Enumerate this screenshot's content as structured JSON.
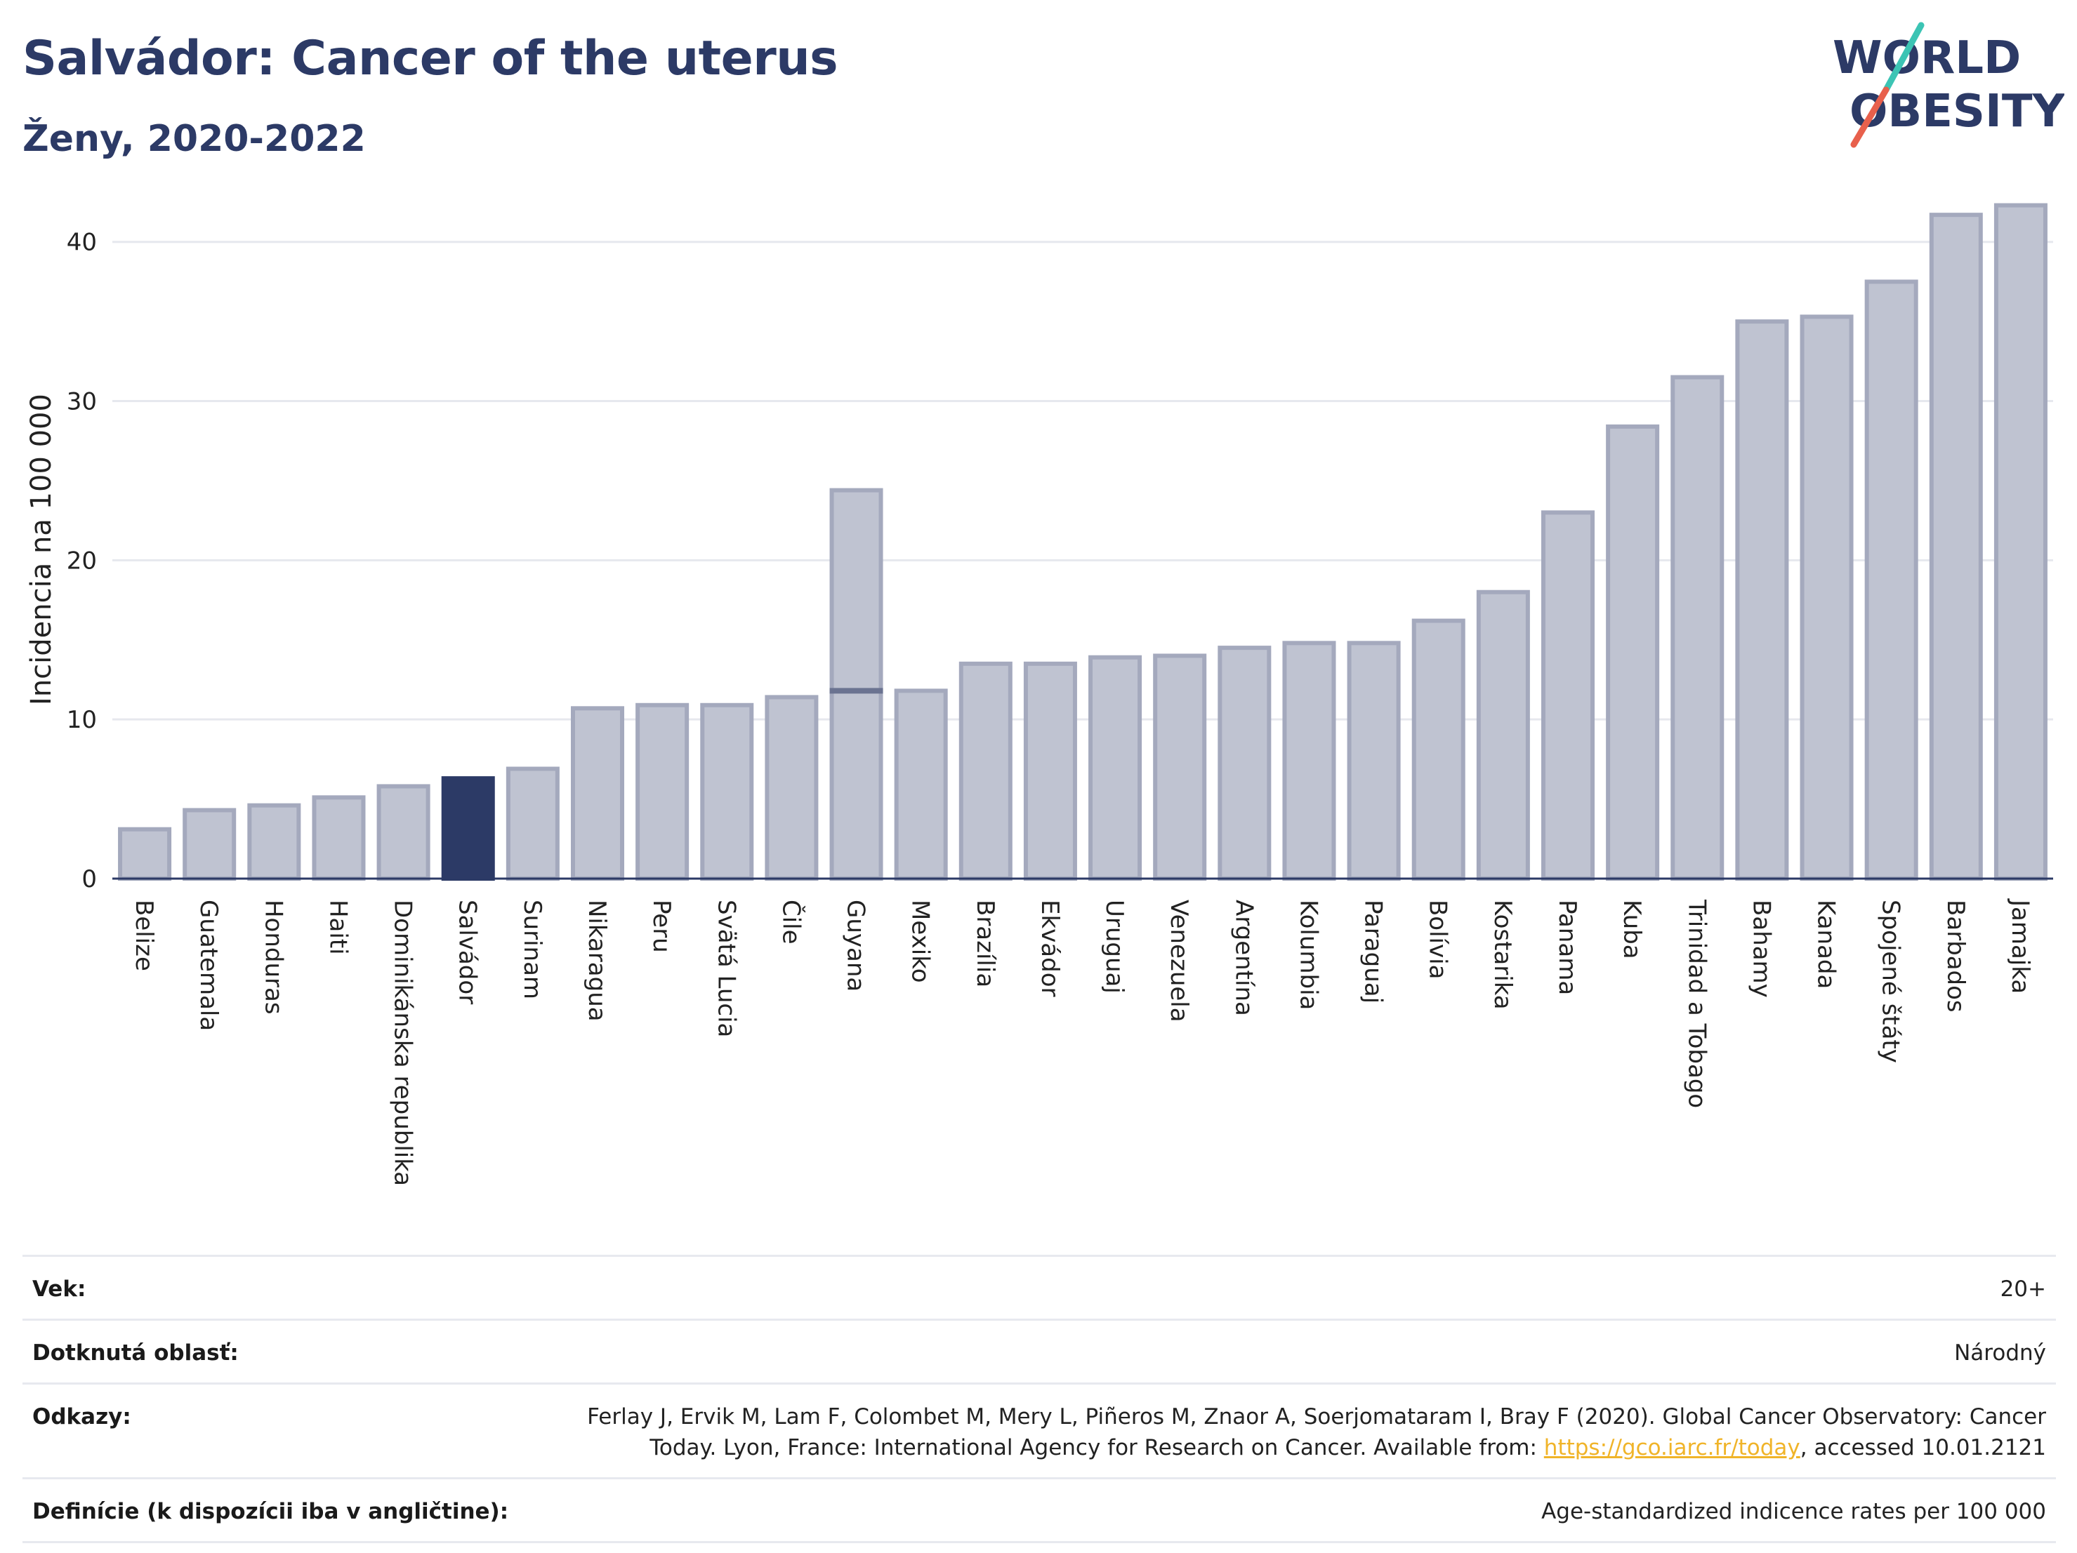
{
  "header": {
    "title": "Salvádor: Cancer of the uterus",
    "subtitle": "Ženy, 2020-2022"
  },
  "logo": {
    "line1": "WORLD",
    "line2": "OBESITY",
    "colors": {
      "text": "#2c3a66",
      "slash_top": "#3cc4b4",
      "slash_bottom": "#e8604c"
    }
  },
  "colors": {
    "bar_fill": "#bfc3d1",
    "bar_stroke": "#a4a9bd",
    "highlight_fill": "#2c3a66",
    "grid": "#e6e8ee",
    "axis": "#2c3a66"
  },
  "chart_data": {
    "type": "bar",
    "title": "Salvádor: Cancer of the uterus",
    "subtitle": "Ženy, 2020-2022",
    "xlabel": "",
    "ylabel": "Incidencia na 100 000",
    "ylim": [
      0,
      44
    ],
    "yticks": [
      0,
      10,
      20,
      30,
      40
    ],
    "grid": true,
    "highlight": "Salvádor",
    "categories": [
      "Belize",
      "Guatemala",
      "Honduras",
      "Haiti",
      "Dominikánska republika",
      "Salvádor",
      "Surinam",
      "Nikaragua",
      "Peru",
      "Svätá Lucia",
      "Čile",
      "Guyana",
      "Mexiko",
      "Brazília",
      "Ekvádor",
      "Uruguaj",
      "Venezuela",
      "Argentína",
      "Kolumbia",
      "Paraguaj",
      "Bolívia",
      "Kostarika",
      "Panama",
      "Kuba",
      "Trinidad a Tobago",
      "Bahamy",
      "Kanada",
      "Spojené štáty",
      "Barbados",
      "Jamajka"
    ],
    "values": [
      3.1,
      4.3,
      4.6,
      5.1,
      5.8,
      6.3,
      6.9,
      10.7,
      10.9,
      10.9,
      11.4,
      24.4,
      11.8,
      13.5,
      13.5,
      13.9,
      14.0,
      14.5,
      14.8,
      14.8,
      16.2,
      18.0,
      23.0,
      28.4,
      31.5,
      35.0,
      35.3,
      37.5,
      41.7,
      42.3
    ],
    "range_markers": [
      {
        "category": "Guyana",
        "value": 11.8
      }
    ]
  },
  "info": {
    "rows": [
      {
        "label": "Vek:",
        "value": "20+"
      },
      {
        "label": "Dotknutá oblasť:",
        "value": "Národný"
      },
      {
        "label": "Odkazy:",
        "value_pre": "Ferlay J, Ervik M, Lam F, Colombet M, Mery L, Piñeros M, Znaor A, Soerjomataram I, Bray F (2020). Global Cancer Observatory: Cancer Today. Lyon, France: International Agency for Research on Cancer. Available from: ",
        "link": "https://gco.iarc.fr/today",
        "value_post": ", accessed 10.01.2121"
      },
      {
        "label": "Definície (k dispozícii iba v angličtine):",
        "value": "Age-standardized indicence rates per 100 000"
      }
    ]
  }
}
